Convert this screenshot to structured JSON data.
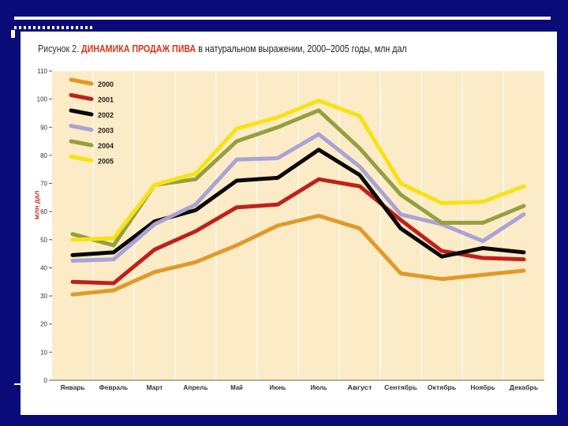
{
  "chart_data": {
    "type": "line",
    "title_prefix": "Рисунок 2.",
    "title_main": "ДИНАМИКА ПРОДАЖ ПИВА",
    "title_suffix": "в натуральном выражении, 2000–2005 годы, млн дал",
    "ylabel": "млн дал",
    "xlabel": "",
    "ylim": [
      0,
      110
    ],
    "yticks": [
      "0",
      "10",
      "20",
      "30",
      "40",
      "50",
      "60",
      "70",
      "80",
      "90",
      "100",
      "110"
    ],
    "categories": [
      "Январь",
      "Февраль",
      "Март",
      "Апрель",
      "Май",
      "Июнь",
      "Июль",
      "Август",
      "Сентябрь",
      "Октябрь",
      "Ноябрь",
      "Декабрь"
    ],
    "series": [
      {
        "name": "2000",
        "color": "#e09a2a",
        "values": [
          30.5,
          32,
          38.5,
          42,
          48,
          55,
          58.5,
          54,
          38,
          36,
          37.5,
          39
        ]
      },
      {
        "name": "2001",
        "color": "#c0201a",
        "values": [
          35,
          34.5,
          46.5,
          53,
          61.5,
          62.5,
          71.5,
          69,
          57,
          46,
          43.5,
          43
        ]
      },
      {
        "name": "2002",
        "color": "#0a0a0a",
        "values": [
          44.5,
          45.5,
          56.5,
          60.5,
          71,
          72,
          82,
          73,
          54,
          44,
          47,
          45.5
        ]
      },
      {
        "name": "2003",
        "color": "#a9a3d6",
        "values": [
          42.5,
          43,
          55.5,
          62.5,
          78.5,
          79,
          87.5,
          76,
          59,
          55.5,
          49.5,
          59
        ]
      },
      {
        "name": "2004",
        "color": "#94a03e",
        "values": [
          52,
          48,
          69.5,
          71.5,
          85,
          90,
          96,
          82.5,
          66,
          56,
          56,
          62
        ]
      },
      {
        "name": "2005",
        "color": "#f7e213",
        "values": [
          50,
          50.5,
          69.5,
          73.5,
          89.5,
          93.5,
          99.5,
          94,
          70,
          63,
          63.5,
          69
        ]
      }
    ]
  }
}
